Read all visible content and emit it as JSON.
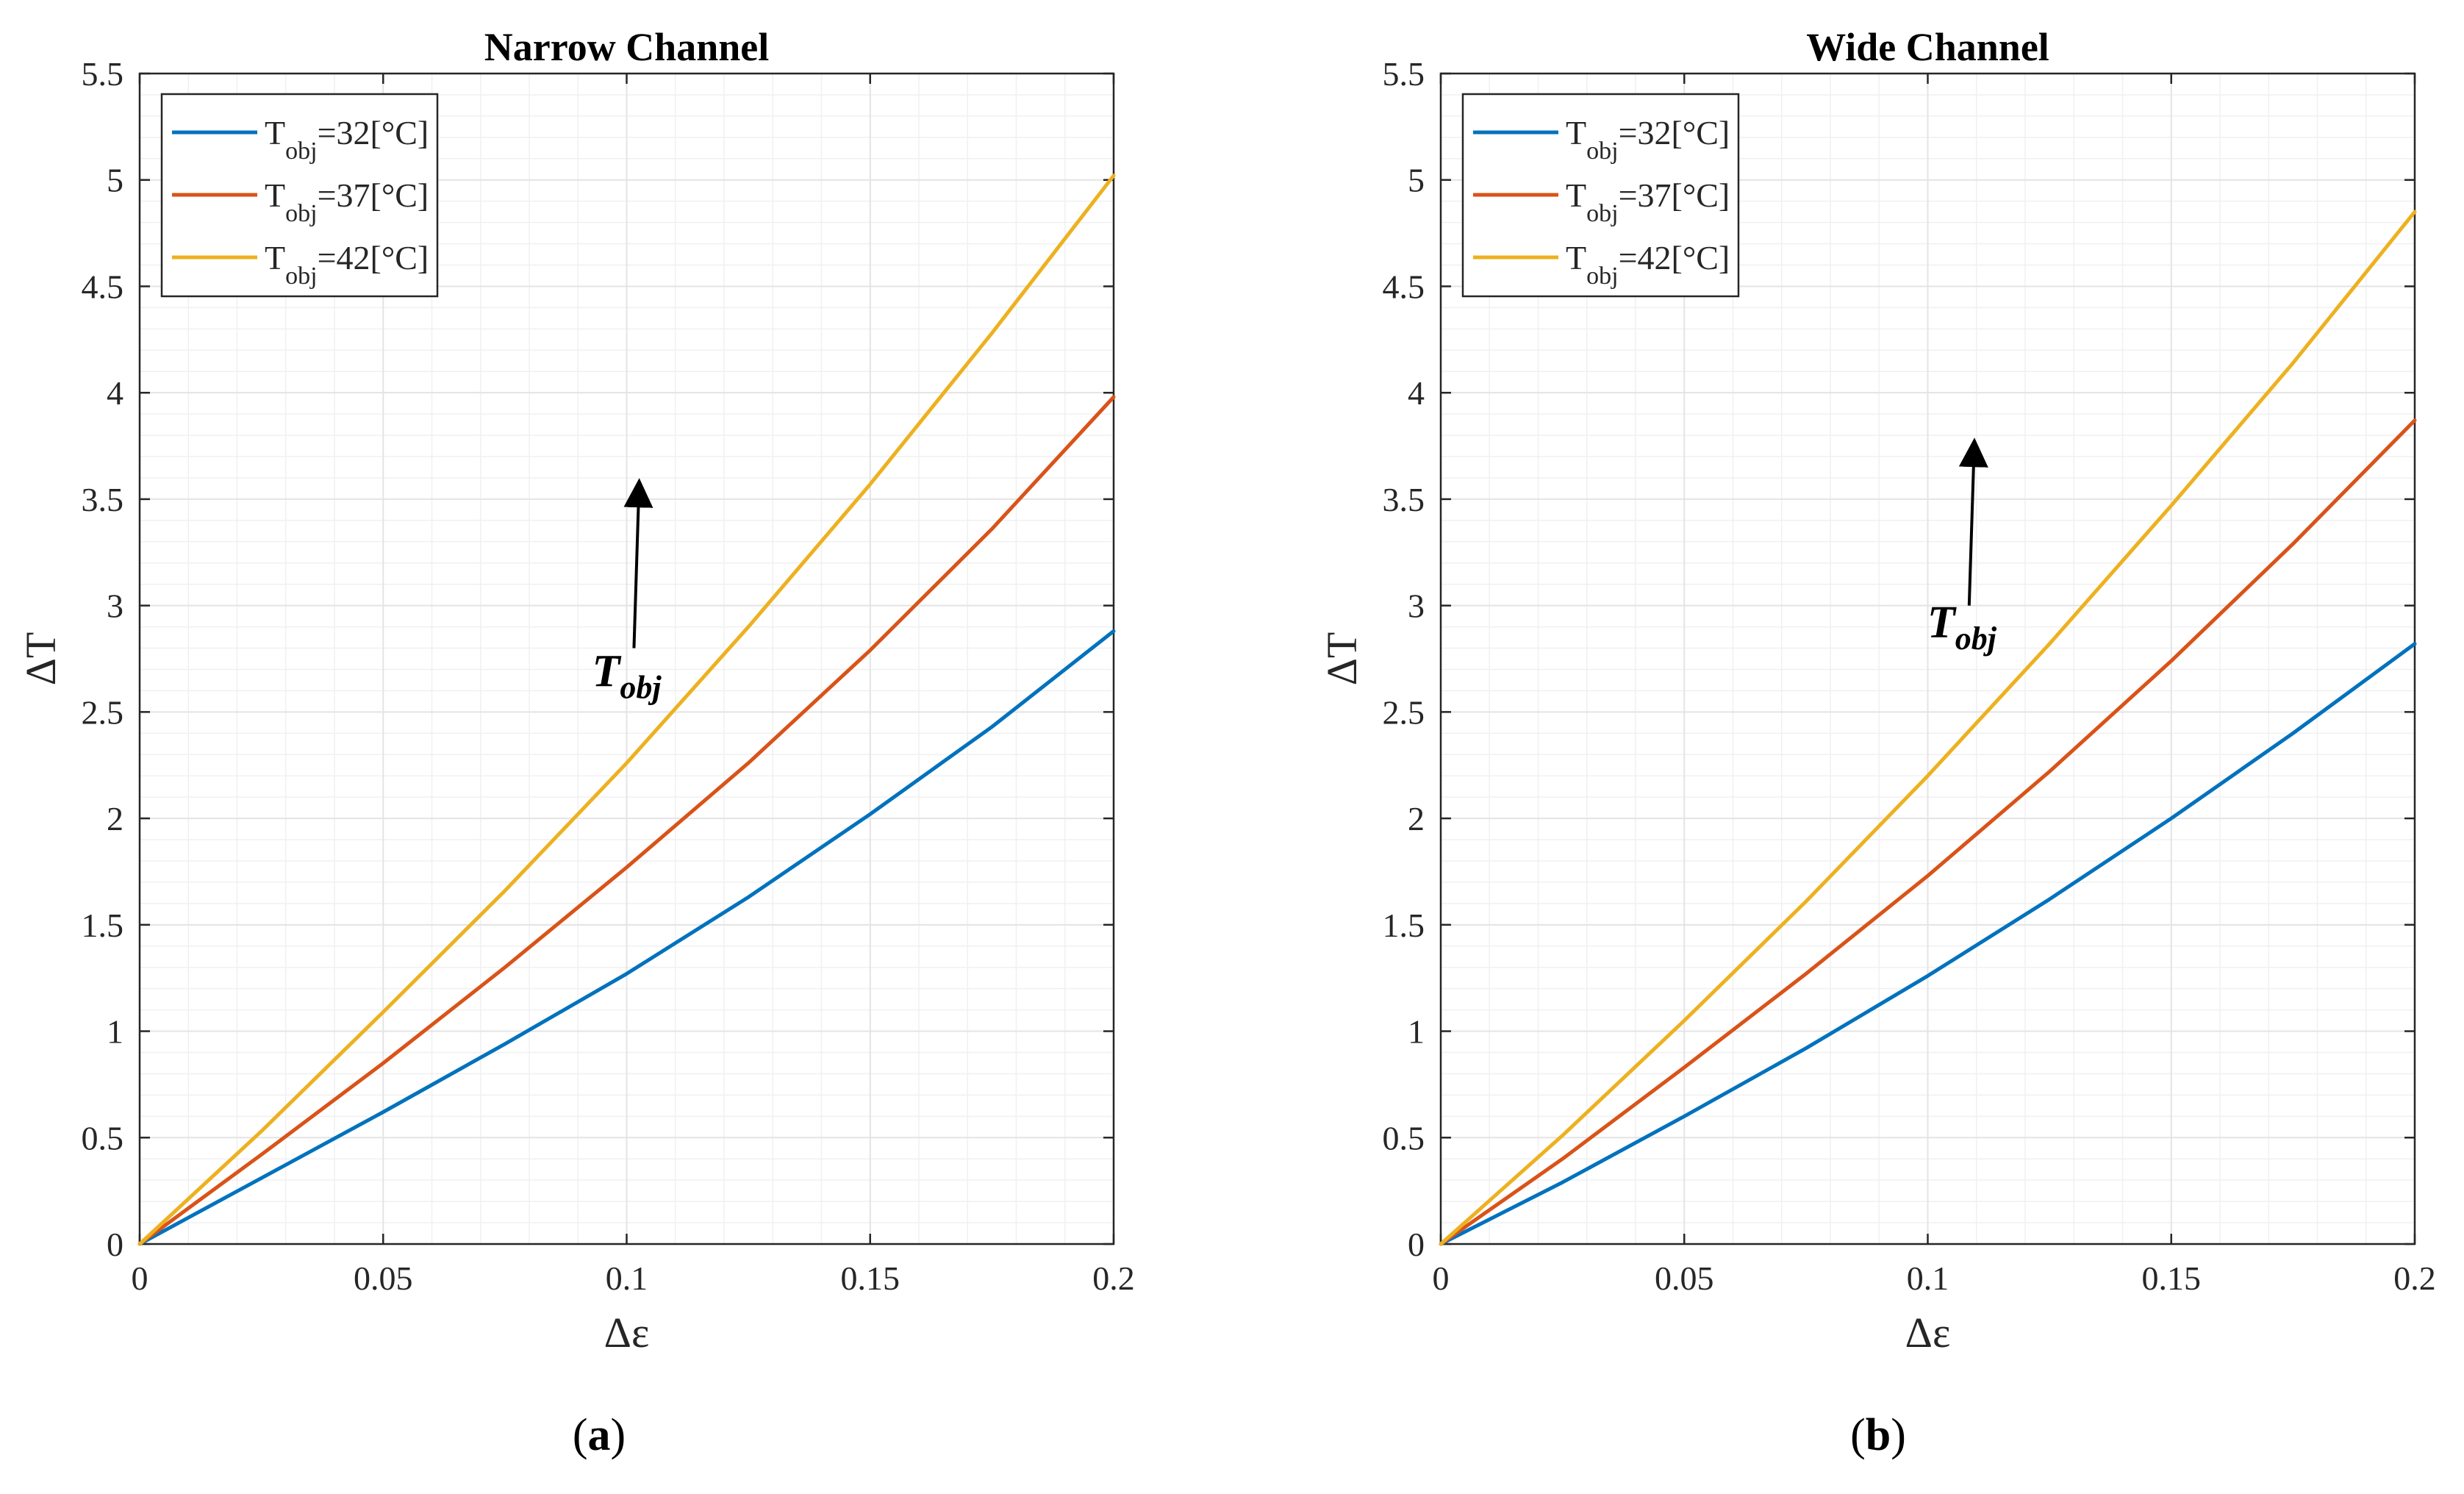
{
  "figure": {
    "panels": [
      {
        "title": "Narrow Channel",
        "caption": "(a)",
        "annotation_base": "T",
        "annotation_sub": "obj"
      },
      {
        "title": "Wide Channel",
        "caption": "(b)",
        "annotation_base": "T",
        "annotation_sub": "obj"
      }
    ],
    "colors": {
      "series": [
        "#0072BD",
        "#D95319",
        "#EDB120"
      ],
      "grid": "#e4e4e4",
      "axis": "#262626"
    }
  },
  "chart_data": [
    {
      "type": "line",
      "title": "Narrow Channel",
      "xlabel": "Δε",
      "ylabel": "ΔT",
      "xlim": [
        0,
        0.2
      ],
      "ylim": [
        0,
        5.5
      ],
      "xticks": [
        0,
        0.05,
        0.1,
        0.15,
        0.2
      ],
      "xtick_labels": [
        "0",
        "0.05",
        "0.1",
        "0.15",
        "0.2"
      ],
      "yticks": [
        0,
        0.5,
        1,
        1.5,
        2,
        2.5,
        3,
        3.5,
        4,
        4.5,
        5,
        5.5
      ],
      "ytick_labels": [
        "0",
        "0.5",
        "1",
        "1.5",
        "2",
        "2.5",
        "3",
        "3.5",
        "4",
        "4.5",
        "5",
        "5.5"
      ],
      "grid": true,
      "legend_position": "top-left",
      "x": [
        0,
        0.025,
        0.05,
        0.075,
        0.1,
        0.125,
        0.15,
        0.175,
        0.2
      ],
      "series": [
        {
          "name": "T_obj=32[°C]",
          "label_base": "T",
          "label_sub": "obj",
          "label_rest": "=32[°C]",
          "values": [
            0,
            0.31,
            0.62,
            0.94,
            1.27,
            1.63,
            2.02,
            2.43,
            2.88
          ]
        },
        {
          "name": "T_obj=37[°C]",
          "label_base": "T",
          "label_sub": "obj",
          "label_rest": "=37[°C]",
          "values": [
            0,
            0.42,
            0.85,
            1.3,
            1.77,
            2.26,
            2.79,
            3.36,
            3.98
          ]
        },
        {
          "name": "T_obj=42[°C]",
          "label_base": "T",
          "label_sub": "obj",
          "label_rest": "=42[°C]",
          "values": [
            0,
            0.53,
            1.09,
            1.66,
            2.26,
            2.9,
            3.57,
            4.28,
            5.02
          ]
        }
      ],
      "annotation": {
        "text": "T_obj",
        "arrow_from": [
          0.1015,
          2.8
        ],
        "arrow_to": [
          0.1025,
          3.53
        ],
        "label_at": [
          0.1,
          2.62
        ]
      }
    },
    {
      "type": "line",
      "title": "Wide Channel",
      "xlabel": "Δε",
      "ylabel": "ΔT",
      "xlim": [
        0,
        0.2
      ],
      "ylim": [
        0,
        5.5
      ],
      "xticks": [
        0,
        0.05,
        0.1,
        0.15,
        0.2
      ],
      "xtick_labels": [
        "0",
        "0.05",
        "0.1",
        "0.15",
        "0.2"
      ],
      "yticks": [
        0,
        0.5,
        1,
        1.5,
        2,
        2.5,
        3,
        3.5,
        4,
        4.5,
        5,
        5.5
      ],
      "ytick_labels": [
        "0",
        "0.5",
        "1",
        "1.5",
        "2",
        "2.5",
        "3",
        "3.5",
        "4",
        "4.5",
        "5",
        "5.5"
      ],
      "grid": true,
      "legend_position": "top-left",
      "x": [
        0,
        0.025,
        0.05,
        0.075,
        0.1,
        0.125,
        0.15,
        0.175,
        0.2
      ],
      "series": [
        {
          "name": "T_obj=32[°C]",
          "label_base": "T",
          "label_sub": "obj",
          "label_rest": "=32[°C]",
          "values": [
            0,
            0.29,
            0.6,
            0.92,
            1.26,
            1.62,
            2.0,
            2.4,
            2.82
          ]
        },
        {
          "name": "T_obj=37[°C]",
          "label_base": "T",
          "label_sub": "obj",
          "label_rest": "=37[°C]",
          "values": [
            0,
            0.4,
            0.83,
            1.27,
            1.73,
            2.22,
            2.74,
            3.29,
            3.87
          ]
        },
        {
          "name": "T_obj=42[°C]",
          "label_base": "T",
          "label_sub": "obj",
          "label_rest": "=42[°C]",
          "values": [
            0,
            0.51,
            1.05,
            1.61,
            2.2,
            2.82,
            3.47,
            4.14,
            4.85
          ]
        }
      ],
      "annotation": {
        "text": "T_obj",
        "arrow_from": [
          0.1085,
          3.0
        ],
        "arrow_to": [
          0.1095,
          3.72
        ],
        "label_at": [
          0.107,
          2.85
        ]
      }
    }
  ]
}
